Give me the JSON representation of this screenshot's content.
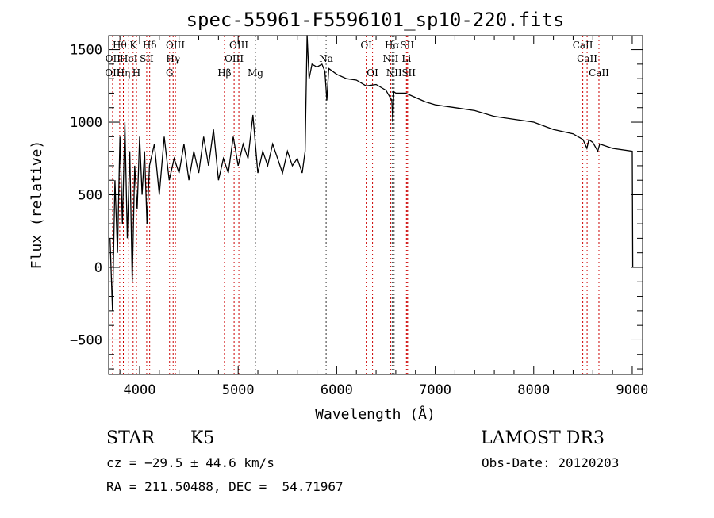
{
  "chart_data": {
    "type": "line",
    "title": "spec-55961-F5596101_sp10-220.fits",
    "xlabel": "Wavelength (Å)",
    "ylabel": "Flux (relative)",
    "xlim": [
      3686,
      9105
    ],
    "ylim": [
      -738,
      1596
    ],
    "xticks": [
      4000,
      5000,
      6000,
      7000,
      8000,
      9000
    ],
    "yticks": [
      -500,
      0,
      500,
      1000,
      1500
    ],
    "grid": false,
    "series": [
      {
        "name": "spectrum",
        "x": [
          3700,
          3725,
          3750,
          3775,
          3800,
          3825,
          3850,
          3875,
          3900,
          3925,
          3950,
          3975,
          4000,
          4025,
          4050,
          4075,
          4100,
          4150,
          4200,
          4250,
          4300,
          4350,
          4400,
          4450,
          4500,
          4550,
          4600,
          4650,
          4700,
          4750,
          4800,
          4850,
          4900,
          4950,
          5000,
          5050,
          5100,
          5150,
          5200,
          5250,
          5300,
          5350,
          5400,
          5450,
          5500,
          5550,
          5600,
          5650,
          5680,
          5700,
          5720,
          5750,
          5800,
          5850,
          5880,
          5900,
          5920,
          6000,
          6100,
          6200,
          6300,
          6400,
          6500,
          6560,
          6570,
          6580,
          6600,
          6700,
          6800,
          6900,
          7000,
          7200,
          7400,
          7600,
          7800,
          8000,
          8200,
          8400,
          8500,
          8540,
          8560,
          8600,
          8650,
          8670,
          8800,
          9000,
          9005
        ],
        "y": [
          200,
          -300,
          600,
          100,
          900,
          300,
          1000,
          200,
          800,
          -100,
          700,
          400,
          900,
          500,
          800,
          300,
          700,
          850,
          500,
          900,
          600,
          750,
          650,
          850,
          600,
          800,
          650,
          900,
          700,
          950,
          600,
          750,
          650,
          900,
          700,
          850,
          750,
          1050,
          650,
          800,
          700,
          850,
          750,
          650,
          800,
          700,
          750,
          650,
          800,
          1600,
          1300,
          1400,
          1380,
          1400,
          1350,
          1150,
          1370,
          1330,
          1300,
          1290,
          1250,
          1260,
          1220,
          1150,
          1000,
          1210,
          1200,
          1200,
          1170,
          1140,
          1120,
          1100,
          1080,
          1040,
          1020,
          1000,
          950,
          920,
          880,
          820,
          880,
          860,
          800,
          850,
          820,
          800,
          0
        ]
      }
    ],
    "lines": [
      {
        "label": "Hθ",
        "wl": 3798,
        "row": 1,
        "color": "#cc0000"
      },
      {
        "label": "K",
        "wl": 3934,
        "row": 1,
        "color": "#cc0000"
      },
      {
        "label": "Hδ",
        "wl": 4102,
        "row": 1,
        "color": "#cc0000"
      },
      {
        "label": "OIII",
        "wl": 4363,
        "row": 1,
        "color": "#cc0000"
      },
      {
        "label": "OIII",
        "wl": 5007,
        "row": 1,
        "color": "#cc0000"
      },
      {
        "label": "OI",
        "wl": 6300,
        "row": 1,
        "color": "#cc0000"
      },
      {
        "label": "Hα",
        "wl": 6563,
        "row": 1,
        "color": "#333333"
      },
      {
        "label": "SII",
        "wl": 6716,
        "row": 1,
        "color": "#cc0000"
      },
      {
        "label": "CaII",
        "wl": 8498,
        "row": 1,
        "color": "#cc0000"
      },
      {
        "label": "OII",
        "wl": 3729,
        "row": 2,
        "color": "#cc0000"
      },
      {
        "label": "HeI",
        "wl": 3889,
        "row": 2,
        "color": "#cc0000"
      },
      {
        "label": "SII",
        "wl": 4072,
        "row": 2,
        "color": "#cc0000"
      },
      {
        "label": "Hγ",
        "wl": 4340,
        "row": 2,
        "color": "#cc0000"
      },
      {
        "label": "OIII",
        "wl": 4959,
        "row": 2,
        "color": "#cc0000"
      },
      {
        "label": "Na",
        "wl": 5893,
        "row": 2,
        "color": "#333333"
      },
      {
        "label": "NII",
        "wl": 6548,
        "row": 2,
        "color": "#cc0000"
      },
      {
        "label": "Li",
        "wl": 6708,
        "row": 2,
        "color": "#cc0000"
      },
      {
        "label": "CaII",
        "wl": 8542,
        "row": 2,
        "color": "#cc0000"
      },
      {
        "label": "OII",
        "wl": 3726,
        "row": 3,
        "color": "#cc0000"
      },
      {
        "label": "Hη",
        "wl": 3835,
        "row": 3,
        "color": "#cc0000"
      },
      {
        "label": "H",
        "wl": 3968,
        "row": 3,
        "color": "#cc0000"
      },
      {
        "label": "G",
        "wl": 4304,
        "row": 3,
        "color": "#cc0000"
      },
      {
        "label": "Hβ",
        "wl": 4861,
        "row": 3,
        "color": "#cc0000"
      },
      {
        "label": "Mg",
        "wl": 5175,
        "row": 3,
        "color": "#333333"
      },
      {
        "label": "OI",
        "wl": 6364,
        "row": 3,
        "color": "#cc0000"
      },
      {
        "label": "NII",
        "wl": 6583,
        "row": 3,
        "color": "#333333"
      },
      {
        "label": "SII",
        "wl": 6731,
        "row": 3,
        "color": "#cc0000"
      },
      {
        "label": "CaII",
        "wl": 8662,
        "row": 3,
        "color": "#cc0000"
      }
    ]
  },
  "info": {
    "class_label": "STAR",
    "subclass": "K5",
    "survey": "LAMOST DR3",
    "cz": "cz = −29.5 ± 44.6 km/s",
    "obs_date": "Obs-Date: 20120203",
    "radec": "RA = 211.50488, DEC =  54.71967"
  }
}
